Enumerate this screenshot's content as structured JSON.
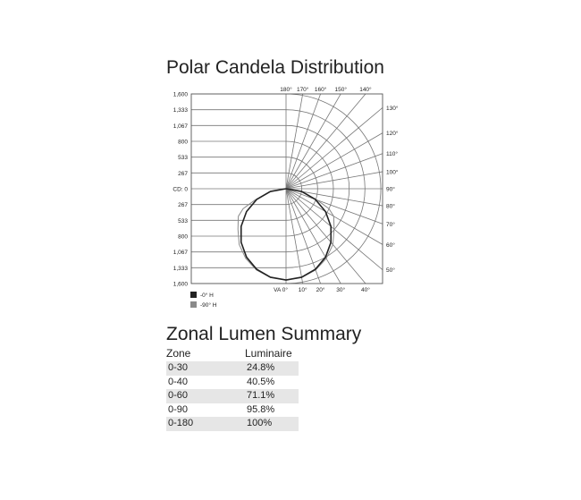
{
  "titles": {
    "polar": "Polar Candela Distribution",
    "zonal": "Zonal Lumen Summary"
  },
  "chart_data": {
    "type": "polar",
    "title": "Polar Candela Distribution",
    "radial_axis": {
      "label_prefix": "CD: ",
      "ticks": [
        0,
        267,
        533,
        800,
        1067,
        1333,
        1600
      ],
      "tick_labels": [
        "CD: 0",
        "267",
        "533",
        "800",
        "1,067",
        "1,333",
        "1,600"
      ],
      "range": [
        0,
        1600
      ]
    },
    "angle_labels": {
      "top": [
        "180°",
        "170°",
        "160°",
        "150°",
        "140°"
      ],
      "right": [
        "130°",
        "120°",
        "110°",
        "100°",
        "90°",
        "80°",
        "70°",
        "60°",
        "50°"
      ],
      "bottom": [
        "VA 0°",
        "10°",
        "20°",
        "30°",
        "40°"
      ]
    },
    "angle_ticks_deg": [
      0,
      10,
      20,
      30,
      40,
      50,
      60,
      70,
      80,
      90,
      100,
      110,
      120,
      130,
      140,
      150,
      160,
      170,
      180
    ],
    "grid": true,
    "legend_position": "bottom-left",
    "series": [
      {
        "name": "-0° H",
        "color": "#222222",
        "angles": [
          0,
          10,
          20,
          30,
          40,
          50,
          60,
          70,
          80,
          90
        ],
        "values": [
          1540,
          1517,
          1447,
          1334,
          1180,
          990,
          770,
          527,
          267,
          0
        ]
      },
      {
        "name": "-90° H",
        "color": "#8a8a8a",
        "angles": [
          0,
          10,
          20,
          30,
          40,
          50,
          60,
          65,
          70,
          80,
          90
        ],
        "values": [
          1540,
          1520,
          1460,
          1360,
          1230,
          1060,
          930,
          800,
          560,
          280,
          0
        ]
      }
    ]
  },
  "zonal": {
    "headers": [
      "Zone",
      "Luminaire"
    ],
    "rows": [
      {
        "zone": "0-30",
        "value": "24.8%"
      },
      {
        "zone": "0-40",
        "value": "40.5%"
      },
      {
        "zone": "0-60",
        "value": "71.1%"
      },
      {
        "zone": "0-90",
        "value": "95.8%"
      },
      {
        "zone": "0-180",
        "value": "100%"
      }
    ]
  }
}
